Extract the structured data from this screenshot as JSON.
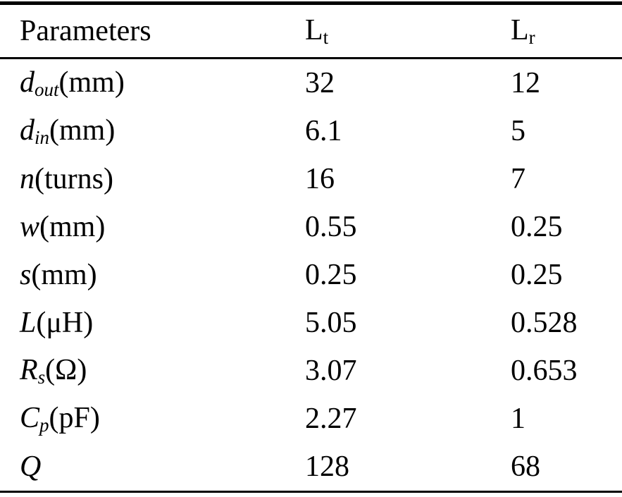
{
  "colors": {
    "background": "#ffffff",
    "text": "#000000",
    "rule": "#000000"
  },
  "table": {
    "header": {
      "parameters": "Parameters",
      "lt": {
        "base": "L",
        "sub": "t"
      },
      "lr": {
        "base": "L",
        "sub": "r"
      }
    },
    "rows": [
      {
        "base": "d",
        "sub": "out",
        "unit": "(mm)",
        "lt": "32",
        "lr": "12"
      },
      {
        "base": "d",
        "sub": "in",
        "unit": "(mm)",
        "lt": "6.1",
        "lr": "5"
      },
      {
        "base": "n",
        "sub": "",
        "unit": "(turns)",
        "lt": "16",
        "lr": "7"
      },
      {
        "base": "w",
        "sub": "",
        "unit": "(mm)",
        "lt": "0.55",
        "lr": "0.25"
      },
      {
        "base": "s",
        "sub": "",
        "unit": "(mm)",
        "lt": "0.25",
        "lr": "0.25"
      },
      {
        "base": "L",
        "sub": "",
        "unit": "(μH)",
        "lt": "5.05",
        "lr": "0.528"
      },
      {
        "base": "R",
        "sub": "s",
        "unit": "(Ω)",
        "lt": "3.07",
        "lr": "0.653"
      },
      {
        "base": "C",
        "sub": "p",
        "unit": "(pF)",
        "lt": "2.27",
        "lr": "1"
      },
      {
        "base": "Q",
        "sub": "",
        "unit": "",
        "lt": "128",
        "lr": "68"
      }
    ]
  }
}
